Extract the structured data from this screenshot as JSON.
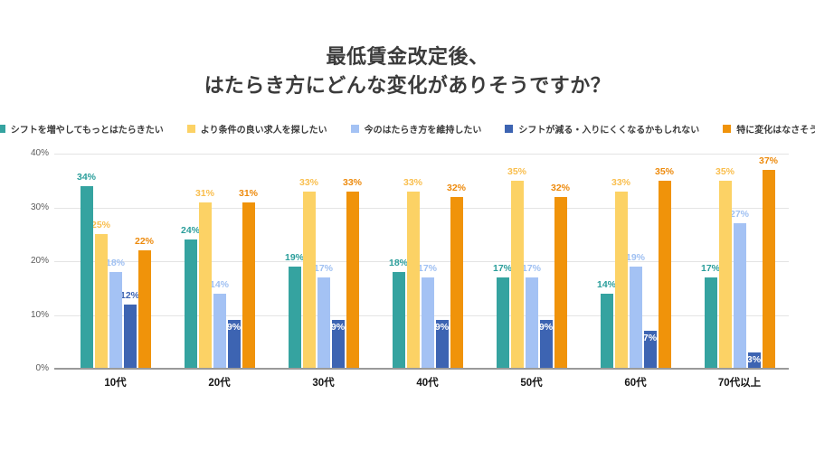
{
  "title": {
    "line1": "最低賃金改定後、",
    "line2": "はたらき方にどんな変化がありそうですか？"
  },
  "chart_data": {
    "type": "bar",
    "title": "最低賃金改定後、はたらき方にどんな変化がありそうですか？",
    "categories": [
      "10代",
      "20代",
      "30代",
      "40代",
      "50代",
      "60代",
      "70代以上"
    ],
    "series": [
      {
        "name": "シフトを増やしてもっとはたらきたい",
        "color": "#35a3a0",
        "label_color": "#2b9e9b",
        "values": [
          34,
          24,
          19,
          18,
          17,
          14,
          17
        ]
      },
      {
        "name": "より条件の良い求人を探したい",
        "color": "#fcd265",
        "label_color": "#f9be4d",
        "values": [
          25,
          31,
          33,
          33,
          35,
          33,
          35
        ]
      },
      {
        "name": "今のはたらき方を維持したい",
        "color": "#a4c2f4",
        "label_color": "#9fc0f2",
        "values": [
          18,
          14,
          17,
          17,
          17,
          19,
          27
        ]
      },
      {
        "name": "シフトが減る・入りにくくなるかもしれない",
        "color": "#3d64b2",
        "label_color": "#3d64b2",
        "inside_label_color": "#ffffff",
        "label_inside": [
          false,
          true,
          true,
          true,
          true,
          true,
          true
        ],
        "values": [
          12,
          9,
          9,
          9,
          9,
          7,
          3
        ]
      },
      {
        "name": "特に変化はなさそう",
        "color": "#f0930a",
        "label_color": "#ed8a0c",
        "values": [
          22,
          31,
          33,
          32,
          32,
          35,
          37
        ]
      }
    ],
    "value_suffix": "%",
    "ylim": [
      0,
      40
    ],
    "yticks": [
      0,
      10,
      20,
      30,
      40
    ],
    "ytick_labels": [
      "0%",
      "10%",
      "20%",
      "30%",
      "40%"
    ],
    "grid": true,
    "legend_position": "top"
  }
}
